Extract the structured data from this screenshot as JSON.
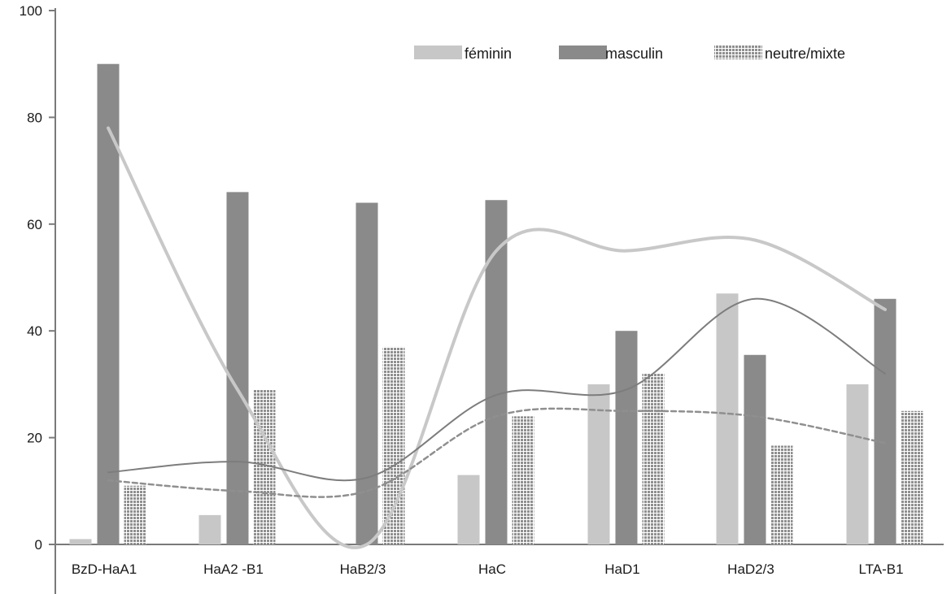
{
  "chart_data": {
    "type": "bar",
    "title": "",
    "xlabel": "",
    "ylabel": "",
    "ylim": [
      0,
      100
    ],
    "yticks": [
      0,
      20,
      40,
      60,
      80,
      100
    ],
    "grid": false,
    "legend_position": "top-right",
    "categories": [
      "BzD-HaA1",
      "HaA2 -B1",
      "HaB2/3",
      "HaC",
      "HaD1",
      "HaD2/3",
      "LTA-B1"
    ],
    "series": [
      {
        "name": "féminin",
        "values": [
          1,
          5.5,
          0,
          13,
          30,
          47,
          30
        ],
        "color": "#c7c7c7",
        "pattern": "solid"
      },
      {
        "name": "masculin",
        "values": [
          90,
          66,
          64,
          64.5,
          40,
          35.5,
          46
        ],
        "color": "#8a8a8b",
        "pattern": "solid"
      },
      {
        "name": "neutre/mixte",
        "values": [
          11,
          29,
          37,
          24,
          32,
          18.5,
          25
        ],
        "color": "#8f8f8f",
        "pattern": "grid"
      }
    ],
    "trendlines": [
      {
        "series": "féminin",
        "values": [
          78,
          29,
          0,
          55,
          55,
          57,
          44
        ],
        "color": "#c8c8c8",
        "style": "solid"
      },
      {
        "series": "masculin",
        "values": [
          13.5,
          15.5,
          12.5,
          28,
          29,
          46,
          32
        ],
        "color": "#7d7d7d",
        "style": "solid"
      },
      {
        "series": "neutre/mixte",
        "values": [
          12,
          10,
          10,
          24,
          25,
          24,
          19
        ],
        "color": "#8f8f8f",
        "style": "dashed"
      }
    ]
  }
}
